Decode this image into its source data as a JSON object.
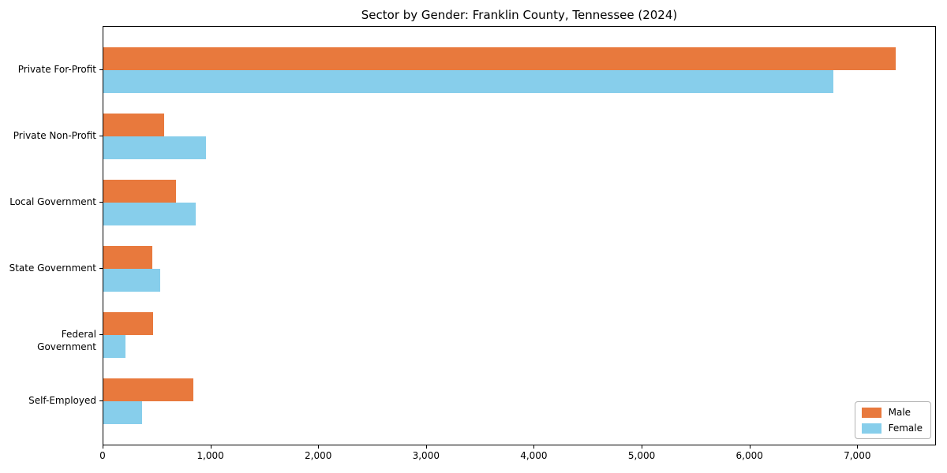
{
  "title": "Sector by Gender: Franklin County, Tennessee (2024)",
  "chart_data": {
    "type": "bar",
    "orientation": "horizontal",
    "title": "Sector by Gender: Franklin County, Tennessee (2024)",
    "categories": [
      "Private For-Profit",
      "Private Non-Profit",
      "Local Government",
      "State Government",
      "Federal Government",
      "Self-Employed"
    ],
    "series": [
      {
        "name": "Male",
        "color": "#E8793D",
        "values": [
          7350,
          560,
          670,
          455,
          460,
          835
        ]
      },
      {
        "name": "Female",
        "color": "#87CEEB",
        "values": [
          6770,
          950,
          855,
          530,
          205,
          355
        ]
      }
    ],
    "xlabel": "",
    "ylabel": "",
    "xlim": [
      0,
      7730
    ],
    "xticks": [
      0,
      1000,
      2000,
      3000,
      4000,
      5000,
      6000,
      7000
    ],
    "xtick_labels": [
      "0",
      "1,000",
      "2,000",
      "3,000",
      "4,000",
      "5,000",
      "6,000",
      "7,000"
    ],
    "legend_position": "lower right",
    "grid": false
  }
}
